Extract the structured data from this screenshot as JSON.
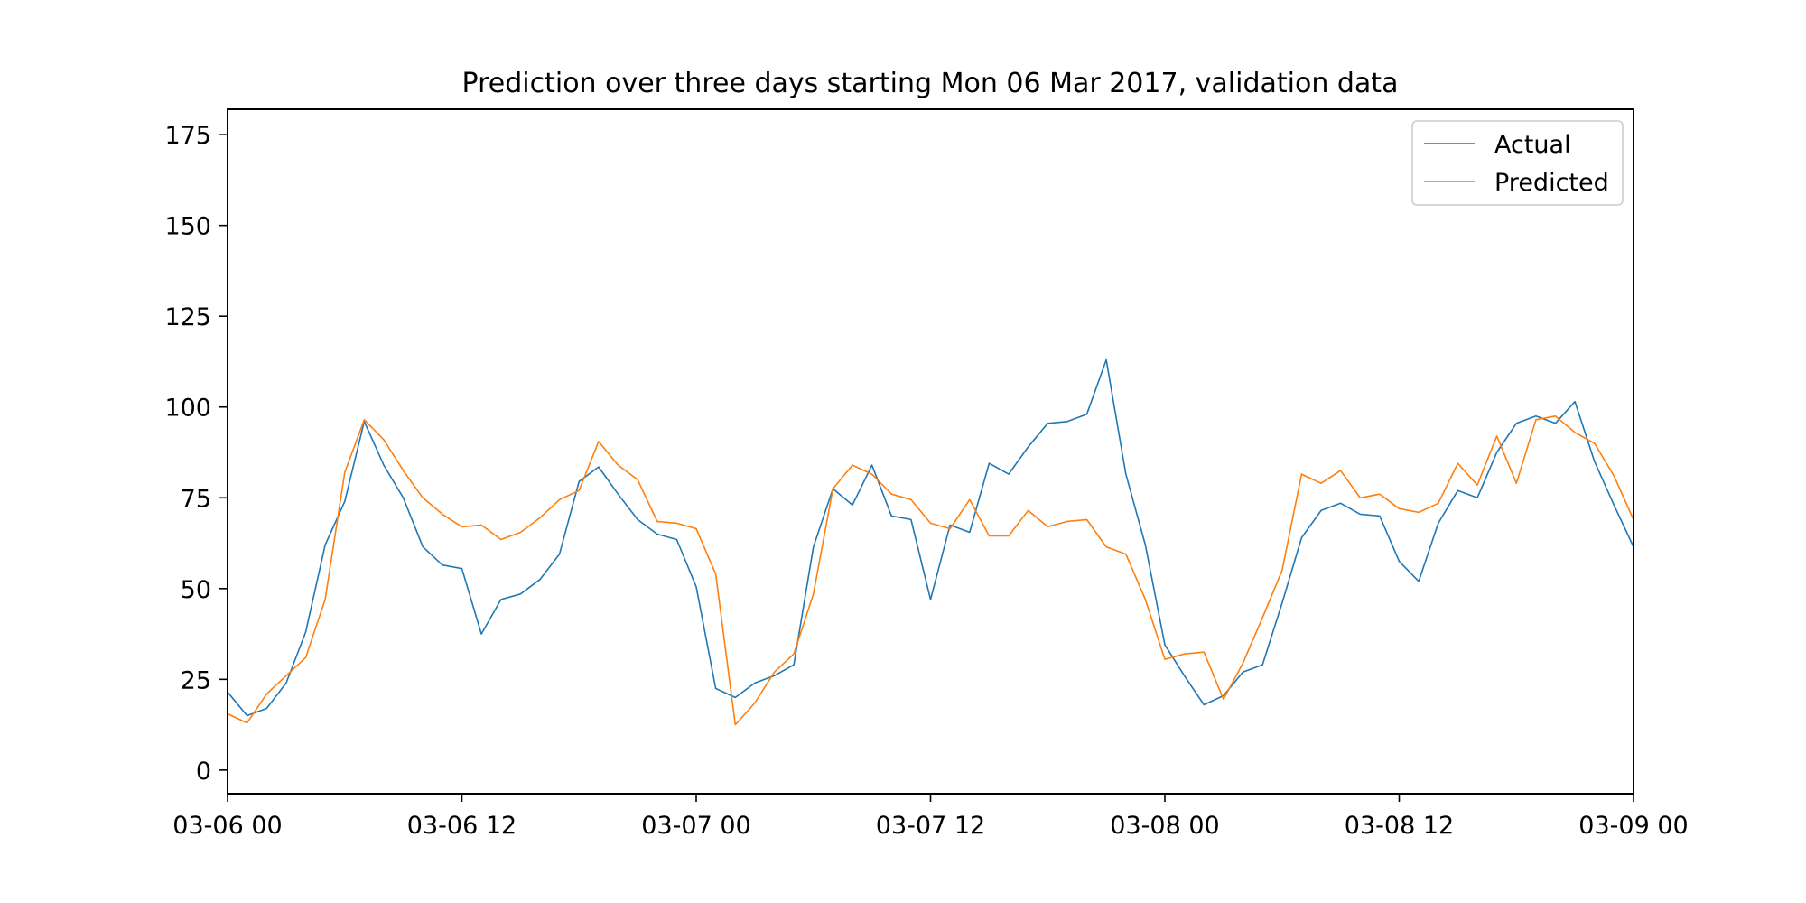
{
  "chart_data": {
    "type": "line",
    "title": "Prediction over three days starting Mon 06 Mar 2017, validation data",
    "xlabel": "",
    "ylabel": "",
    "x_unit": "hour",
    "x_start": "2017-03-06 00:00",
    "x_end": "2017-03-09 00:00",
    "xlim": [
      "03-06 00",
      "03-09 00"
    ],
    "ylim": [
      -6.5,
      182
    ],
    "grid": false,
    "legend_position": "top-right",
    "x_ticks": [
      {
        "label": "03-06 00",
        "hour": 0
      },
      {
        "label": "03-06 12",
        "hour": 12
      },
      {
        "label": "03-07 00",
        "hour": 24
      },
      {
        "label": "03-07 12",
        "hour": 36
      },
      {
        "label": "03-08 00",
        "hour": 48
      },
      {
        "label": "03-08 12",
        "hour": 60
      },
      {
        "label": "03-09 00",
        "hour": 72
      }
    ],
    "y_ticks": [
      0,
      25,
      50,
      75,
      100,
      125,
      150,
      175
    ],
    "series": [
      {
        "name": "Actual",
        "color": "#1f77b4",
        "values": [
          21.5,
          15,
          17,
          24,
          38,
          62,
          74,
          96,
          84,
          75,
          61.5,
          56.5,
          55.5,
          37.5,
          47,
          48.5,
          52.5,
          59.5,
          79.5,
          83.5,
          76,
          69,
          65,
          63.5,
          50.5,
          22.5,
          20,
          24,
          26,
          29,
          61.5,
          77.5,
          73,
          84,
          70,
          69,
          47,
          67.5,
          65.5,
          84.5,
          81.5,
          89,
          95.5,
          96,
          98,
          113,
          81.5,
          62,
          34.5,
          26,
          18,
          20.5,
          27,
          29,
          46,
          64,
          71.5,
          73.5,
          70.5,
          70,
          57.5,
          52,
          68,
          77,
          75,
          87.5,
          95.5,
          97.5,
          95.5,
          101.5,
          85,
          73,
          61.5
        ]
      },
      {
        "name": "Predicted",
        "color": "#ff7f0e",
        "values": [
          15.5,
          13,
          21,
          26,
          31,
          47,
          82,
          96.5,
          91,
          82.5,
          75,
          70.5,
          67,
          67.5,
          63.5,
          65.5,
          69.5,
          74.5,
          77,
          90.5,
          84,
          80,
          68.5,
          68,
          66.5,
          54,
          12.5,
          18.5,
          27,
          32,
          48.5,
          77.5,
          84,
          81.5,
          76,
          74.5,
          68,
          66.5,
          74.5,
          64.5,
          64.5,
          71.5,
          67,
          68.5,
          69,
          61.5,
          59.5,
          47,
          30.5,
          32,
          32.5,
          19.5,
          29.5,
          42,
          55,
          81.5,
          79,
          82.5,
          75,
          76,
          72,
          71,
          73.5,
          84.5,
          78.5,
          92,
          79,
          96.5,
          97.5,
          93,
          90,
          81,
          69
        ]
      }
    ]
  }
}
